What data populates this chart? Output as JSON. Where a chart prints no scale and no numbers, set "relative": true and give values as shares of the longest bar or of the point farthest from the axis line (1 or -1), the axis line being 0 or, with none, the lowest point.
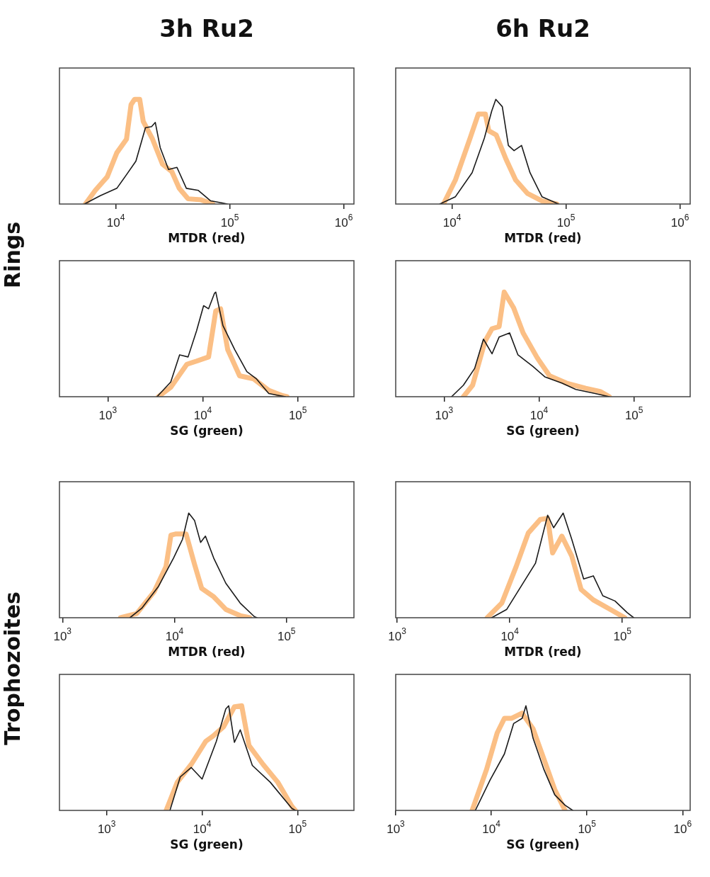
{
  "chart_data": [
    {
      "type": "line",
      "title": "3h Ru2",
      "ylabel": "Rings",
      "xlabel": "MTDR (red)",
      "relative": true,
      "log": "x",
      "marker": "none",
      "line_style": "solid",
      "xlim": [
        3200,
        1230000
      ],
      "xticks": [
        {
          "value": 10000,
          "label": "10$^{4}$"
        },
        {
          "value": 100000,
          "label": "10$^{5}$"
        },
        {
          "value": 1000000,
          "label": "10$^{6}$"
        }
      ],
      "series": [
        {
          "color": "#fbbf85",
          "x": [
            5400,
            6600,
            8400,
            10200,
            12400,
            13600,
            14600,
            16200,
            17400,
            21000,
            25700,
            31000,
            36000,
            43000,
            56000,
            71000
          ],
          "values": [
            0,
            0.13,
            0.26,
            0.49,
            0.62,
            0.95,
            1,
            1,
            0.79,
            0.62,
            0.38,
            0.31,
            0.15,
            0.05,
            0.04,
            0
          ]
        },
        {
          "color": "#1a1a1a",
          "x": [
            5300,
            7300,
            10200,
            12400,
            15000,
            18200,
            20600,
            22200,
            24500,
            29000,
            34400,
            41600,
            53000,
            68000,
            86000,
            95000
          ],
          "values": [
            0,
            0.08,
            0.15,
            0.28,
            0.41,
            0.73,
            0.74,
            0.78,
            0.54,
            0.33,
            0.35,
            0.15,
            0.13,
            0.03,
            0.01,
            0
          ]
        }
      ]
    },
    {
      "type": "line",
      "title": "6h Ru2",
      "xlabel": "MTDR (red)",
      "relative": true,
      "log": "x",
      "marker": "none",
      "line_style": "solid",
      "xlim": [
        3200,
        1230000
      ],
      "xticks": [
        {
          "value": 10000,
          "label": "10$^{4}$"
        },
        {
          "value": 100000,
          "label": "10$^{5}$"
        },
        {
          "value": 1000000,
          "label": "10$^{6}$"
        }
      ],
      "series": [
        {
          "color": "#fbbf85",
          "x": [
            8400,
            10700,
            14400,
            17000,
            19600,
            21000,
            24400,
            29700,
            36100,
            46000,
            61500,
            83000
          ],
          "values": [
            0,
            0.23,
            0.63,
            0.86,
            0.86,
            0.7,
            0.66,
            0.43,
            0.23,
            0.1,
            0.03,
            0
          ]
        },
        {
          "color": "#1a1a1a",
          "x": [
            7800,
            10700,
            15000,
            19200,
            22300,
            24200,
            27600,
            31200,
            35000,
            40700,
            48300,
            61500,
            86000
          ],
          "values": [
            0,
            0.07,
            0.3,
            0.63,
            0.89,
            1,
            0.93,
            0.56,
            0.51,
            0.56,
            0.3,
            0.07,
            0
          ]
        }
      ]
    },
    {
      "type": "line",
      "xlabel": "SG (green)",
      "relative": true,
      "log": "x",
      "marker": "none",
      "line_style": "solid",
      "xlim": [
        310,
        390000
      ],
      "xticks": [
        {
          "value": 1000,
          "label": "10$^{3}$"
        },
        {
          "value": 10000,
          "label": "10$^{4}$"
        },
        {
          "value": 100000,
          "label": "10$^{5}$"
        }
      ],
      "series": [
        {
          "color": "#fbbf85",
          "x": [
            3400,
            4600,
            6800,
            8600,
            11500,
            13700,
            15400,
            18300,
            24400,
            34400,
            49500,
            69000,
            77000
          ],
          "values": [
            0,
            0.09,
            0.31,
            0.34,
            0.38,
            0.82,
            0.84,
            0.45,
            0.2,
            0.17,
            0.06,
            0.01,
            0
          ]
        },
        {
          "color": "#1a1a1a",
          "x": [
            3300,
            4600,
            5700,
            7000,
            8600,
            10200,
            11500,
            13300,
            13700,
            16300,
            21700,
            29100,
            36800,
            49500,
            74000
          ],
          "values": [
            0,
            0.14,
            0.4,
            0.38,
            0.63,
            0.87,
            0.84,
            0.99,
            1,
            0.68,
            0.45,
            0.24,
            0.17,
            0.03,
            0
          ]
        }
      ]
    },
    {
      "type": "line",
      "xlabel": "SG (green)",
      "relative": true,
      "log": "x",
      "marker": "none",
      "line_style": "solid",
      "xlim": [
        310,
        390000
      ],
      "xticks": [
        {
          "value": 1000,
          "label": "10$^{3}$"
        },
        {
          "value": 10000,
          "label": "10$^{4}$"
        },
        {
          "value": 100000,
          "label": "10$^{5}$"
        }
      ],
      "series": [
        {
          "color": "#fbbf85",
          "x": [
            1600,
            2000,
            2700,
            3200,
            3800,
            4300,
            5400,
            6800,
            9600,
            12900,
            19400,
            31000,
            44000,
            55000
          ],
          "values": [
            0,
            0.11,
            0.53,
            0.65,
            0.67,
            1,
            0.85,
            0.61,
            0.37,
            0.2,
            0.13,
            0.08,
            0.05,
            0
          ]
        },
        {
          "color": "#1a1a1a",
          "x": [
            1200,
            1600,
            2100,
            2600,
            3200,
            3800,
            4900,
            6000,
            8600,
            11500,
            17400,
            24400,
            39000,
            55000
          ],
          "values": [
            0,
            0.11,
            0.27,
            0.55,
            0.41,
            0.57,
            0.61,
            0.4,
            0.29,
            0.19,
            0.13,
            0.07,
            0.03,
            0
          ]
        }
      ]
    },
    {
      "type": "line",
      "ylabel": "Trophozoites",
      "xlabel": "MTDR (red)",
      "relative": true,
      "log": "x",
      "marker": "none",
      "line_style": "solid",
      "xlim": [
        940,
        400000
      ],
      "xticks": [
        {
          "value": 1000,
          "label": "10$^{3}$"
        },
        {
          "value": 10000,
          "label": "10$^{4}$"
        },
        {
          "value": 100000,
          "label": "10$^{5}$"
        }
      ],
      "series": [
        {
          "color": "#fbbf85",
          "x": [
            3300,
            4600,
            6600,
            8400,
            9300,
            10200,
            12700,
            15100,
            17500,
            22400,
            28700,
            38600,
            47000
          ],
          "values": [
            0,
            0.04,
            0.25,
            0.49,
            0.79,
            0.8,
            0.8,
            0.51,
            0.28,
            0.2,
            0.08,
            0.02,
            0
          ]
        },
        {
          "color": "#1a1a1a",
          "x": [
            4000,
            5100,
            7200,
            9800,
            11800,
            13400,
            15100,
            17100,
            18900,
            22400,
            28700,
            38600,
            51700,
            54500
          ],
          "values": [
            0,
            0.09,
            0.3,
            0.57,
            0.75,
            1,
            0.93,
            0.72,
            0.78,
            0.57,
            0.33,
            0.14,
            0.01,
            0
          ]
        }
      ]
    },
    {
      "type": "line",
      "xlabel": "MTDR (red)",
      "relative": true,
      "log": "x",
      "marker": "none",
      "line_style": "solid",
      "xlim": [
        970,
        400000
      ],
      "xticks": [
        {
          "value": 1000,
          "label": "10$^{3}$"
        },
        {
          "value": 10000,
          "label": "10$^{4}$"
        },
        {
          "value": 100000,
          "label": "10$^{5}$"
        }
      ],
      "series": [
        {
          "color": "#fbbf85",
          "x": [
            6300,
            8500,
            11400,
            14600,
            18700,
            21700,
            24000,
            29000,
            35500,
            43000,
            55200,
            78000,
            105000
          ],
          "values": [
            0,
            0.14,
            0.49,
            0.81,
            0.94,
            0.95,
            0.62,
            0.78,
            0.59,
            0.27,
            0.17,
            0.08,
            0
          ]
        },
        {
          "color": "#1a1a1a",
          "x": [
            6900,
            9400,
            12600,
            16900,
            21700,
            24500,
            29800,
            35500,
            45300,
            55200,
            67000,
            86000,
            110000,
            126000
          ],
          "values": [
            0,
            0.08,
            0.3,
            0.52,
            0.98,
            0.86,
            1,
            0.75,
            0.37,
            0.4,
            0.21,
            0.16,
            0.05,
            0
          ]
        }
      ]
    },
    {
      "type": "line",
      "xlabel": "SG (green)",
      "relative": true,
      "log": "x",
      "marker": "none",
      "line_style": "solid",
      "xlim": [
        320,
        390000
      ],
      "xticks": [
        {
          "value": 1000,
          "label": "10$^{3}$"
        },
        {
          "value": 10000,
          "label": "10$^{4}$"
        },
        {
          "value": 100000,
          "label": "10$^{5}$"
        }
      ],
      "series": [
        {
          "color": "#fbbf85",
          "x": [
            4200,
            5500,
            7700,
            10900,
            13000,
            16800,
            21800,
            26000,
            31000,
            43500,
            62000,
            87000,
            95000
          ],
          "values": [
            0,
            0.27,
            0.44,
            0.66,
            0.71,
            0.8,
            0.99,
            1,
            0.62,
            0.44,
            0.27,
            0.04,
            0
          ]
        },
        {
          "color": "#1a1a1a",
          "x": [
            4600,
            5900,
            7700,
            10000,
            14100,
            17700,
            19000,
            21800,
            25100,
            33600,
            51700,
            87000,
            95000
          ],
          "values": [
            0,
            0.32,
            0.41,
            0.3,
            0.66,
            0.97,
            1,
            0.65,
            0.77,
            0.43,
            0.27,
            0.02,
            0
          ]
        }
      ]
    },
    {
      "type": "line",
      "xlabel": "SG (green)",
      "relative": true,
      "log": "x",
      "marker": "none",
      "line_style": "solid",
      "xlim": [
        1000,
        1200000
      ],
      "xticks": [
        {
          "value": 1000,
          "label": "10$^{3}$"
        },
        {
          "value": 10000,
          "label": "10$^{4}$"
        },
        {
          "value": 100000,
          "label": "10$^{5}$"
        },
        {
          "value": 1000000,
          "label": "10$^{6}$"
        }
      ],
      "series": [
        {
          "color": "#fbbf85",
          "x": [
            6300,
            8900,
            11500,
            13700,
            16200,
            21000,
            27300,
            35500,
            46000,
            59000
          ],
          "values": [
            0,
            0.39,
            0.74,
            0.88,
            0.88,
            0.93,
            0.78,
            0.49,
            0.2,
            0
          ]
        },
        {
          "color": "#1a1a1a",
          "x": [
            6800,
            9700,
            13700,
            17100,
            21000,
            23000,
            27300,
            35500,
            46000,
            59000,
            71000
          ],
          "values": [
            0,
            0.29,
            0.54,
            0.83,
            0.88,
            1,
            0.69,
            0.39,
            0.15,
            0.05,
            0
          ]
        }
      ]
    }
  ]
}
